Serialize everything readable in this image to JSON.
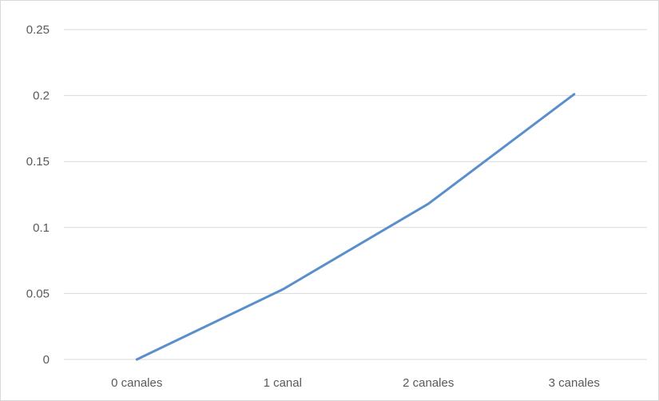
{
  "chart_data": {
    "type": "line",
    "title": "",
    "xlabel": "",
    "ylabel": "",
    "categories": [
      "0 canales",
      "1 canal",
      "2 canales",
      "3 canales"
    ],
    "series": [
      {
        "values": [
          0.0,
          0.053,
          0.118,
          0.201
        ]
      }
    ],
    "ylim": [
      0,
      0.25
    ],
    "yticks": [
      0,
      0.05,
      0.1,
      0.15,
      0.2,
      0.25
    ],
    "ytick_labels": [
      "0",
      "0.05",
      "0.1",
      "0.15",
      "0.2",
      "0.25"
    ],
    "grid": true,
    "legend": "none",
    "colors": {
      "series": "#5b8fcb",
      "grid": "#d9d9d9",
      "text": "#595959"
    }
  }
}
